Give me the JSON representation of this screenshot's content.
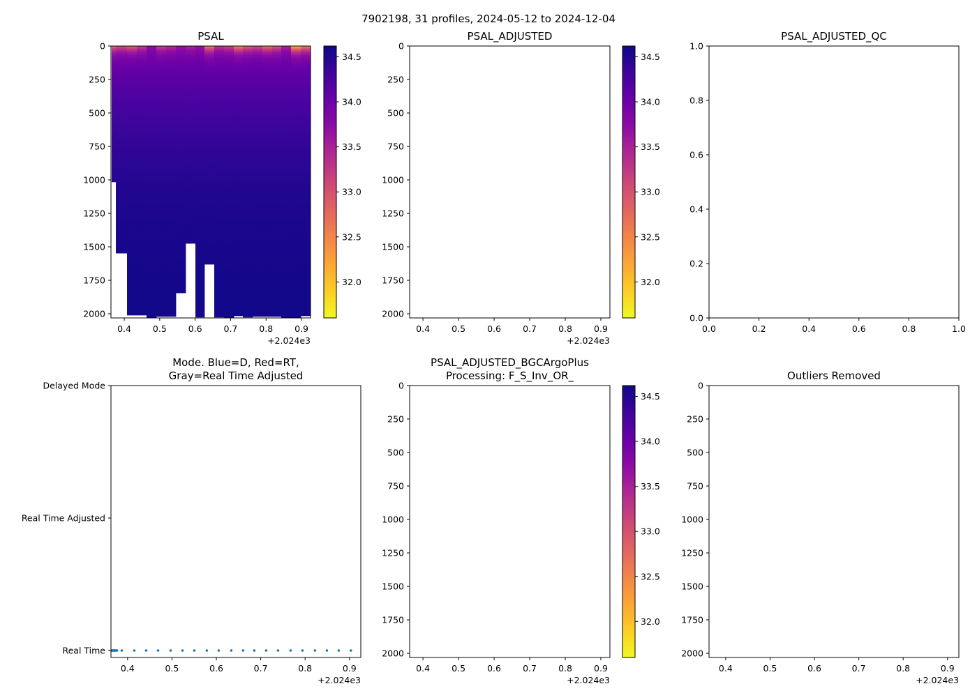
{
  "suptitle": "7902198, 31 profiles, 2024-05-12 to 2024-12-04",
  "x_offset_label": "+2.024e3",
  "colors": {
    "mode_points": "#1f77b4",
    "missing": "#ffffff"
  },
  "colorbar": {
    "vmin": 31.6,
    "vmax": 34.62,
    "ticks": [
      32.0,
      32.5,
      33.0,
      33.5,
      34.0,
      34.5
    ],
    "tick_labels": [
      "32.0",
      "32.5",
      "33.0",
      "33.5",
      "34.0",
      "34.5"
    ],
    "colormap": "plasma_r"
  },
  "chart_data": [
    {
      "id": "psal",
      "type": "heatmap",
      "title": "PSAL",
      "xlim": [
        0.3625,
        0.9255
      ],
      "ylim": [
        2031,
        0
      ],
      "xticks": [
        0.4,
        0.5,
        0.6,
        0.7,
        0.8,
        0.9
      ],
      "xtick_labels": [
        "0.4",
        "0.5",
        "0.6",
        "0.7",
        "0.8",
        "0.9"
      ],
      "yticks": [
        0,
        250,
        500,
        750,
        1000,
        1250,
        1500,
        1750,
        2000
      ],
      "ytick_labels": [
        "0",
        "250",
        "500",
        "750",
        "1000",
        "1250",
        "1500",
        "1750",
        "2000"
      ],
      "columns": {
        "x_edges": [
          0.3645,
          0.3763,
          0.4078,
          0.4353,
          0.4629,
          0.4904,
          0.518,
          0.5456,
          0.5731,
          0.6007,
          0.6263,
          0.6538,
          0.6814,
          0.709,
          0.7345,
          0.7621,
          0.7897,
          0.8172,
          0.8428,
          0.8704,
          0.8979,
          0.9255
        ],
        "max_depth": [
          1015,
          1547,
          2010,
          2010,
          2031,
          2020,
          2020,
          1844,
          1474,
          2025,
          1630,
          2025,
          2031,
          2015,
          2025,
          2020,
          2020,
          2020,
          2031,
          2031,
          2015
        ],
        "surface_psal": [
          32.6,
          32.9,
          32.7,
          33.1,
          33.7,
          33.1,
          33.3,
          33.6,
          33.4,
          33.6,
          32.4,
          33.2,
          33.0,
          32.3,
          32.7,
          32.9,
          32.5,
          32.8,
          33.4,
          31.9,
          32.4
        ]
      },
      "colorbar": true
    },
    {
      "id": "psal_adjusted",
      "type": "heatmap",
      "title": "PSAL_ADJUSTED",
      "xlim": [
        0.3625,
        0.9255
      ],
      "ylim": [
        2031,
        0
      ],
      "xticks": [
        0.4,
        0.5,
        0.6,
        0.7,
        0.8,
        0.9
      ],
      "xtick_labels": [
        "0.4",
        "0.5",
        "0.6",
        "0.7",
        "0.8",
        "0.9"
      ],
      "yticks": [
        0,
        250,
        500,
        750,
        1000,
        1250,
        1500,
        1750,
        2000
      ],
      "ytick_labels": [
        "0",
        "250",
        "500",
        "750",
        "1000",
        "1250",
        "1500",
        "1750",
        "2000"
      ],
      "columns": null,
      "colorbar": true
    },
    {
      "id": "psal_adjusted_qc",
      "type": "scatter",
      "title": "PSAL_ADJUSTED_QC",
      "xlim": [
        0,
        1
      ],
      "ylim": [
        0,
        1
      ],
      "xticks": [
        0,
        0.2,
        0.4,
        0.6,
        0.8,
        1.0
      ],
      "xtick_labels": [
        "0.0",
        "0.2",
        "0.4",
        "0.6",
        "0.8",
        "1.0"
      ],
      "yticks": [
        0,
        0.2,
        0.4,
        0.6,
        0.8,
        1.0
      ],
      "ytick_labels": [
        "0.0",
        "0.2",
        "0.4",
        "0.6",
        "0.8",
        "1.0"
      ],
      "colorbar": false
    },
    {
      "id": "mode",
      "type": "scatter",
      "title": "Mode. Blue=D, Red=RT,",
      "title2": "Gray=Real Time Adjusted",
      "xlim": [
        0.3625,
        0.9255
      ],
      "ylim": [
        -0.0526,
        2
      ],
      "xticks": [
        0.4,
        0.5,
        0.6,
        0.7,
        0.8,
        0.9
      ],
      "xtick_labels": [
        "0.4",
        "0.5",
        "0.6",
        "0.7",
        "0.8",
        "0.9"
      ],
      "yticks": [
        0,
        1,
        2
      ],
      "ytick_labels": [
        "Real Time",
        "Real Time Adjusted",
        "Delayed Mode"
      ],
      "points": {
        "x": [
          0.364,
          0.3652,
          0.3664,
          0.3676,
          0.3688,
          0.37,
          0.3712,
          0.3724,
          0.3736,
          0.3748,
          0.376,
          0.3868,
          0.4151,
          0.4418,
          0.4686,
          0.4969,
          0.5236,
          0.5503,
          0.5786,
          0.6053,
          0.6336,
          0.6604,
          0.6855,
          0.7123,
          0.739,
          0.7673,
          0.794,
          0.8223,
          0.8491,
          0.8758,
          0.9031
        ],
        "y": [
          0,
          0,
          0,
          0,
          0,
          0,
          0,
          0,
          0,
          0,
          0,
          0,
          0,
          0,
          0,
          0,
          0,
          0,
          0,
          0,
          0,
          0,
          0,
          0,
          0,
          0,
          0,
          0,
          0,
          0,
          0
        ]
      },
      "colorbar": false
    },
    {
      "id": "bgcargoplus",
      "type": "heatmap",
      "title": "PSAL_ADJUSTED_BGCArgoPlus",
      "title2": "Processing: F_S_Inv_OR_",
      "xlim": [
        0.3625,
        0.9255
      ],
      "ylim": [
        2031,
        0
      ],
      "xticks": [
        0.4,
        0.5,
        0.6,
        0.7,
        0.8,
        0.9
      ],
      "xtick_labels": [
        "0.4",
        "0.5",
        "0.6",
        "0.7",
        "0.8",
        "0.9"
      ],
      "yticks": [
        0,
        250,
        500,
        750,
        1000,
        1250,
        1500,
        1750,
        2000
      ],
      "ytick_labels": [
        "0",
        "250",
        "500",
        "750",
        "1000",
        "1250",
        "1500",
        "1750",
        "2000"
      ],
      "columns": null,
      "colorbar": true
    },
    {
      "id": "outliers_removed",
      "type": "heatmap",
      "title": "Outliers Removed",
      "xlim": [
        0.3625,
        0.9255
      ],
      "ylim": [
        2031,
        0
      ],
      "xticks": [
        0.4,
        0.5,
        0.6,
        0.7,
        0.8,
        0.9
      ],
      "xtick_labels": [
        "0.4",
        "0.5",
        "0.6",
        "0.7",
        "0.8",
        "0.9"
      ],
      "yticks": [
        0,
        250,
        500,
        750,
        1000,
        1250,
        1500,
        1750,
        2000
      ],
      "ytick_labels": [
        "0",
        "250",
        "500",
        "750",
        "1000",
        "1250",
        "1500",
        "1750",
        "2000"
      ],
      "columns": null,
      "colorbar": false
    }
  ]
}
